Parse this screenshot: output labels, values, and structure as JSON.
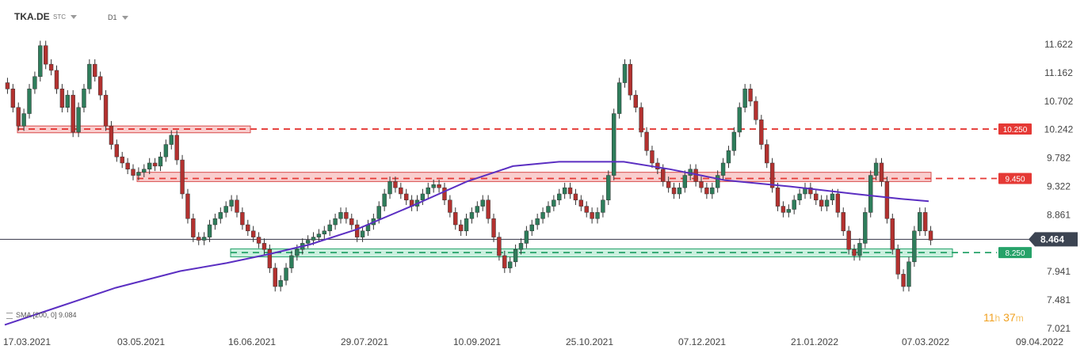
{
  "header": {
    "symbol": "TKA.DE",
    "type": "STC",
    "timeframe": "D1"
  },
  "indicator_legend": "SMA [200, 0] 9.084",
  "countdown": {
    "hours": "11",
    "h_unit": "h",
    "minutes": "37",
    "m_unit": "m"
  },
  "chart_data": {
    "type": "candlestick",
    "symbol": "TKA.DE",
    "timeframe": "D1",
    "ylim": [
      7.021,
      11.622
    ],
    "y_ticks": [
      "11.622",
      "11.162",
      "10.702",
      "10.242",
      "9.782",
      "9.322",
      "8.861",
      "7.941",
      "7.481",
      "7.021"
    ],
    "x_ticks": [
      "17.03.2021",
      "03.05.2021",
      "16.06.2021",
      "29.07.2021",
      "10.09.2021",
      "25.10.2021",
      "07.12.2021",
      "21.01.2022",
      "07.03.2022",
      "09.04.2022"
    ],
    "current_price": {
      "label": "8.464",
      "value": 8.464
    },
    "levels": [
      {
        "label": "10.250",
        "value": 10.25,
        "color": "#e53935"
      },
      {
        "label": "9.450",
        "value": 9.45,
        "color": "#e53935"
      },
      {
        "label": "8.250",
        "value": 8.25,
        "color": "#26a269"
      }
    ],
    "zones": [
      {
        "top": 10.3,
        "bottom": 10.19,
        "from": "17.03.2021",
        "to": "16.06.2021",
        "color": "#f4a6a6"
      },
      {
        "top": 9.55,
        "bottom": 9.4,
        "from": "03.05.2021",
        "to": "07.03.2022",
        "color": "#f4a6a6"
      },
      {
        "top": 8.31,
        "bottom": 8.18,
        "from": "16.06.2021",
        "to": "07.03.2022",
        "color": "#9fe3c5"
      }
    ],
    "sma": {
      "name": "SMA [200, 0]",
      "last": 9.084,
      "color": "#5b2fc2",
      "points": [
        [
          0,
          7.08
        ],
        [
          0.06,
          7.38
        ],
        [
          0.12,
          7.68
        ],
        [
          0.19,
          7.95
        ],
        [
          0.24,
          8.08
        ],
        [
          0.285,
          8.22
        ],
        [
          0.33,
          8.38
        ],
        [
          0.38,
          8.62
        ],
        [
          0.44,
          9.0
        ],
        [
          0.5,
          9.4
        ],
        [
          0.55,
          9.65
        ],
        [
          0.6,
          9.72
        ],
        [
          0.67,
          9.72
        ],
        [
          0.72,
          9.6
        ],
        [
          0.78,
          9.42
        ],
        [
          0.85,
          9.32
        ],
        [
          0.92,
          9.2
        ],
        [
          0.97,
          9.12
        ],
        [
          1.0,
          9.08
        ]
      ]
    },
    "candles_close": [
      10.9,
      10.6,
      10.3,
      10.5,
      10.9,
      11.1,
      11.6,
      11.3,
      11.2,
      10.9,
      10.6,
      10.8,
      10.2,
      10.6,
      10.9,
      11.3,
      11.1,
      10.8,
      10.3,
      10.0,
      9.8,
      9.7,
      9.6,
      9.5,
      9.55,
      9.6,
      9.7,
      9.65,
      9.8,
      10.0,
      10.15,
      9.75,
      9.2,
      8.8,
      8.5,
      8.45,
      8.5,
      8.7,
      8.8,
      8.9,
      9.0,
      9.1,
      8.9,
      8.7,
      8.6,
      8.5,
      8.4,
      8.3,
      8.0,
      7.7,
      7.8,
      8.0,
      8.2,
      8.3,
      8.4,
      8.45,
      8.5,
      8.55,
      8.6,
      8.7,
      8.8,
      8.9,
      8.8,
      8.7,
      8.5,
      8.6,
      8.7,
      8.8,
      9.0,
      9.2,
      9.4,
      9.3,
      9.2,
      9.1,
      9.0,
      9.1,
      9.2,
      9.3,
      9.35,
      9.3,
      9.1,
      8.9,
      8.7,
      8.6,
      8.8,
      8.9,
      9.0,
      9.1,
      8.8,
      8.5,
      8.2,
      8.0,
      8.1,
      8.3,
      8.4,
      8.6,
      8.7,
      8.8,
      8.9,
      9.0,
      9.1,
      9.2,
      9.3,
      9.2,
      9.1,
      9.0,
      8.9,
      8.8,
      8.9,
      9.1,
      9.5,
      10.5,
      11.0,
      11.3,
      10.8,
      10.6,
      10.2,
      9.9,
      9.7,
      9.6,
      9.4,
      9.3,
      9.2,
      9.3,
      9.5,
      9.6,
      9.4,
      9.3,
      9.2,
      9.3,
      9.5,
      9.7,
      9.9,
      10.2,
      10.6,
      10.9,
      10.7,
      10.4,
      10.0,
      9.7,
      9.3,
      9.0,
      8.9,
      8.95,
      9.1,
      9.2,
      9.3,
      9.2,
      9.1,
      9.0,
      9.1,
      9.2,
      8.9,
      8.6,
      8.3,
      8.2,
      8.4,
      8.9,
      9.5,
      9.7,
      9.4,
      8.8,
      8.3,
      7.9,
      7.7,
      8.1,
      8.6,
      8.9,
      8.6,
      8.45
    ]
  }
}
